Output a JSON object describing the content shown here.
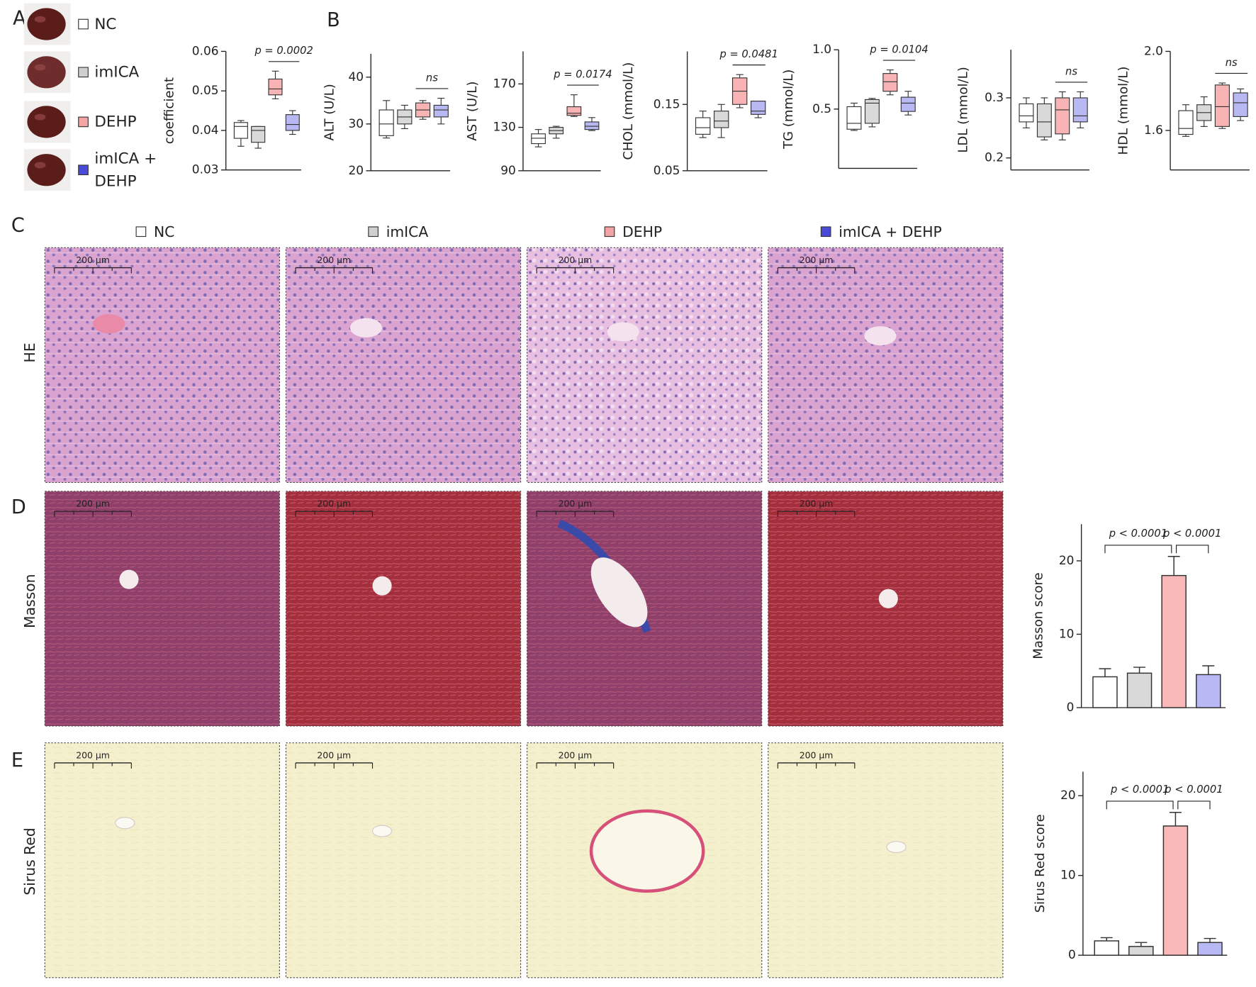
{
  "panel_labels": [
    "A",
    "B",
    "C",
    "D",
    "E"
  ],
  "legend": [
    {
      "name": "NC",
      "color": "#ffffff"
    },
    {
      "name": "imICA",
      "color": "#cfcfcf"
    },
    {
      "name": "DEHP",
      "color": "#f4a4a4"
    },
    {
      "name": "imICA + DEHP",
      "color": "#4a4ad8"
    }
  ],
  "row_labels": [
    "HE",
    "Masson",
    "Sirus Red"
  ],
  "scale_bar": "200 µm",
  "chart_data": [
    {
      "type": "box",
      "ylabel": "coefficient",
      "ylim": [
        0.03,
        0.06
      ],
      "yticks": [
        0.03,
        0.04,
        0.05,
        0.06
      ],
      "series": [
        {
          "name": "NC",
          "color": "#ffffff",
          "min": 0.036,
          "q1": 0.038,
          "median": 0.041,
          "q3": 0.042,
          "max": 0.0425
        },
        {
          "name": "imICA",
          "color": "#d9d9d9",
          "min": 0.0355,
          "q1": 0.037,
          "median": 0.04,
          "q3": 0.041,
          "max": 0.041
        },
        {
          "name": "DEHP",
          "color": "#f8b4b4",
          "min": 0.048,
          "q1": 0.049,
          "median": 0.0505,
          "q3": 0.053,
          "max": 0.055
        },
        {
          "name": "imICA + DEHP",
          "color": "#b8b8f2",
          "min": 0.039,
          "q1": 0.04,
          "median": 0.0415,
          "q3": 0.044,
          "max": 0.045
        }
      ],
      "annotations": [
        {
          "text": "p = 0.0002",
          "between": [
            "DEHP",
            "imICA + DEHP"
          ]
        }
      ]
    },
    {
      "type": "box",
      "ylabel": "ALT (U/L)",
      "ylim": [
        20,
        45
      ],
      "yticks": [
        20,
        30,
        40
      ],
      "series": [
        {
          "name": "NC",
          "color": "#ffffff",
          "min": 27,
          "q1": 27.5,
          "median": 30,
          "q3": 33,
          "max": 35
        },
        {
          "name": "imICA",
          "color": "#d9d9d9",
          "min": 29,
          "q1": 30,
          "median": 31.5,
          "q3": 33,
          "max": 34
        },
        {
          "name": "DEHP",
          "color": "#f8b4b4",
          "min": 31,
          "q1": 31.5,
          "median": 33,
          "q3": 34.5,
          "max": 35
        },
        {
          "name": "imICA + DEHP",
          "color": "#b8b8f2",
          "min": 30,
          "q1": 31.5,
          "median": 33,
          "q3": 34,
          "max": 35.5
        }
      ],
      "annotations": [
        {
          "text": "ns",
          "between": [
            "DEHP",
            "imICA + DEHP"
          ]
        }
      ]
    },
    {
      "type": "box",
      "ylabel": "AST (U/L)",
      "ylim": [
        90,
        200
      ],
      "yticks": [
        90,
        130,
        170
      ],
      "series": [
        {
          "name": "NC",
          "color": "#ffffff",
          "min": 112,
          "q1": 115,
          "median": 120,
          "q3": 124,
          "max": 128
        },
        {
          "name": "imICA",
          "color": "#d9d9d9",
          "min": 120,
          "q1": 124,
          "median": 127,
          "q3": 130,
          "max": 131
        },
        {
          "name": "DEHP",
          "color": "#f8b4b4",
          "min": 140,
          "q1": 141,
          "median": 143,
          "q3": 149,
          "max": 160
        },
        {
          "name": "imICA + DEHP",
          "color": "#b8b8f2",
          "min": 127,
          "q1": 128,
          "median": 131,
          "q3": 135,
          "max": 139
        }
      ],
      "annotations": [
        {
          "text": "p = 0.0174",
          "between": [
            "DEHP",
            "imICA + DEHP"
          ]
        }
      ]
    },
    {
      "type": "box",
      "ylabel": "CHOL (mmol/L)",
      "ylim": [
        0.05,
        0.23
      ],
      "yticks": [
        0.05,
        0.15
      ],
      "series": [
        {
          "name": "NC",
          "color": "#ffffff",
          "min": 0.1,
          "q1": 0.105,
          "median": 0.115,
          "q3": 0.13,
          "max": 0.14
        },
        {
          "name": "imICA",
          "color": "#d9d9d9",
          "min": 0.1,
          "q1": 0.115,
          "median": 0.125,
          "q3": 0.14,
          "max": 0.15
        },
        {
          "name": "DEHP",
          "color": "#f8b4b4",
          "min": 0.145,
          "q1": 0.15,
          "median": 0.17,
          "q3": 0.19,
          "max": 0.195
        },
        {
          "name": "imICA + DEHP",
          "color": "#b8b8f2",
          "min": 0.13,
          "q1": 0.135,
          "median": 0.14,
          "q3": 0.155,
          "max": 0.155
        }
      ],
      "annotations": [
        {
          "text": "p = 0.0481",
          "between": [
            "DEHP",
            "imICA + DEHP"
          ]
        }
      ]
    },
    {
      "type": "box",
      "ylabel": "TG (mmol/L)",
      "ylim": [
        0,
        1
      ],
      "yticks": [
        0.5,
        {
          "value": 1,
          "label": "1.0"
        }
      ],
      "series": [
        {
          "name": "NC",
          "color": "#ffffff",
          "min": 0.32,
          "q1": 0.33,
          "median": 0.38,
          "q3": 0.52,
          "max": 0.55
        },
        {
          "name": "imICA",
          "color": "#d9d9d9",
          "min": 0.35,
          "q1": 0.38,
          "median": 0.55,
          "q3": 0.58,
          "max": 0.59
        },
        {
          "name": "DEHP",
          "color": "#f8b4b4",
          "min": 0.62,
          "q1": 0.65,
          "median": 0.73,
          "q3": 0.8,
          "max": 0.83
        },
        {
          "name": "imICA + DEHP",
          "color": "#b8b8f2",
          "min": 0.45,
          "q1": 0.48,
          "median": 0.55,
          "q3": 0.6,
          "max": 0.65
        }
      ],
      "annotations": [
        {
          "text": "p = 0.0104",
          "between": [
            "DEHP",
            "imICA + DEHP"
          ]
        }
      ]
    },
    {
      "type": "box",
      "ylabel": "LDL (mmol/L)",
      "ylim": [
        0.18,
        0.38
      ],
      "yticks": [
        0.2,
        0.3
      ],
      "series": [
        {
          "name": "NC",
          "color": "#ffffff",
          "min": 0.25,
          "q1": 0.26,
          "median": 0.27,
          "q3": 0.29,
          "max": 0.3
        },
        {
          "name": "imICA",
          "color": "#d9d9d9",
          "min": 0.23,
          "q1": 0.235,
          "median": 0.26,
          "q3": 0.29,
          "max": 0.3
        },
        {
          "name": "DEHP",
          "color": "#f8b4b4",
          "min": 0.23,
          "q1": 0.24,
          "median": 0.28,
          "q3": 0.3,
          "max": 0.31
        },
        {
          "name": "imICA + DEHP",
          "color": "#b8b8f2",
          "min": 0.25,
          "q1": 0.26,
          "median": 0.27,
          "q3": 0.3,
          "max": 0.31
        }
      ],
      "annotations": [
        {
          "text": "ns",
          "between": [
            "DEHP",
            "imICA + DEHP"
          ]
        }
      ]
    },
    {
      "type": "box",
      "ylabel": "HDL (mmol/L)",
      "ylim": [
        1.4,
        2
      ],
      "yticks": [
        1.6,
        {
          "value": 2,
          "label": "2.0"
        }
      ],
      "series": [
        {
          "name": "NC",
          "color": "#ffffff",
          "min": 1.57,
          "q1": 1.58,
          "median": 1.61,
          "q3": 1.7,
          "max": 1.73
        },
        {
          "name": "imICA",
          "color": "#d9d9d9",
          "min": 1.62,
          "q1": 1.65,
          "median": 1.69,
          "q3": 1.73,
          "max": 1.77
        },
        {
          "name": "DEHP",
          "color": "#f8b4b4",
          "min": 1.61,
          "q1": 1.62,
          "median": 1.72,
          "q3": 1.83,
          "max": 1.84
        },
        {
          "name": "imICA + DEHP",
          "color": "#b8b8f2",
          "min": 1.65,
          "q1": 1.67,
          "median": 1.74,
          "q3": 1.79,
          "max": 1.81
        }
      ],
      "annotations": [
        {
          "text": "ns",
          "between": [
            "DEHP",
            "imICA + DEHP"
          ]
        }
      ]
    },
    {
      "type": "bar",
      "ylabel": "Masson score",
      "ylim": [
        0,
        25
      ],
      "yticks": [
        0,
        10,
        20
      ],
      "categories": [
        "NC",
        "imICA",
        "DEHP",
        "imICA + DEHP"
      ],
      "colors": [
        "#ffffff",
        "#d9d9d9",
        "#f9b9b9",
        "#b8b8f5"
      ],
      "values": [
        4.2,
        4.7,
        18,
        4.5
      ],
      "errors": [
        1.1,
        0.8,
        2.6,
        1.2
      ],
      "annotations": [
        {
          "text": "p < 0.0001",
          "between": [
            "NC",
            "DEHP"
          ]
        },
        {
          "text": "p < 0.0001",
          "between": [
            "DEHP",
            "imICA + DEHP"
          ]
        }
      ]
    },
    {
      "type": "bar",
      "ylabel": "Sirus Red score",
      "ylim": [
        0,
        23
      ],
      "yticks": [
        0,
        10,
        20
      ],
      "categories": [
        "NC",
        "imICA",
        "DEHP",
        "imICA + DEHP"
      ],
      "colors": [
        "#ffffff",
        "#d9d9d9",
        "#f9b9b9",
        "#b8b8f5"
      ],
      "values": [
        1.8,
        1.1,
        16.2,
        1.6
      ],
      "errors": [
        0.4,
        0.5,
        1.7,
        0.5
      ],
      "annotations": [
        {
          "text": "p < 0.0001",
          "between": [
            "NC",
            "DEHP"
          ]
        },
        {
          "text": "p < 0.0001",
          "between": [
            "DEHP",
            "imICA + DEHP"
          ]
        }
      ]
    }
  ]
}
